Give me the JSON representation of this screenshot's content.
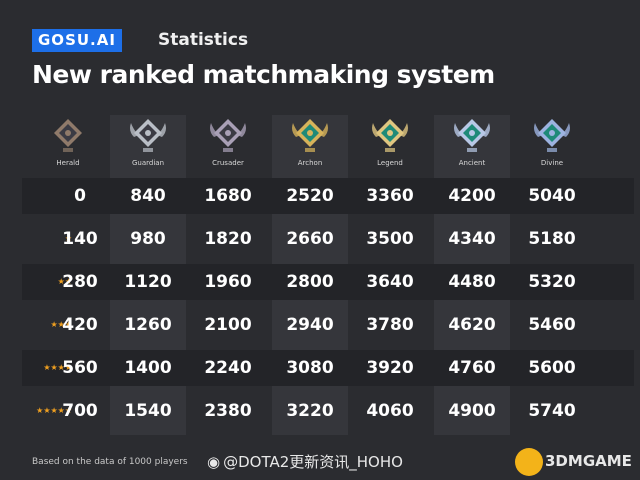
{
  "header": {
    "brand": "GOSU.AI",
    "section": "Statistics",
    "title": "New ranked matchmaking system"
  },
  "ranks": [
    {
      "name": "Herald",
      "icon": "herald-medal-icon",
      "color": "#8f7a6a"
    },
    {
      "name": "Guardian",
      "icon": "guardian-medal-icon",
      "color": "#b9bec6"
    },
    {
      "name": "Crusader",
      "icon": "crusader-medal-icon",
      "color": "#a9a0b6"
    },
    {
      "name": "Archon",
      "icon": "archon-medal-icon",
      "color": "#d7b35a"
    },
    {
      "name": "Legend",
      "icon": "legend-medal-icon",
      "color": "#e0c680"
    },
    {
      "name": "Ancient",
      "icon": "ancient-medal-icon",
      "color": "#b8c8e6"
    },
    {
      "name": "Divine",
      "icon": "divine-medal-icon",
      "color": "#9db3e0"
    }
  ],
  "rows": [
    {
      "stars": "",
      "values": [
        "0",
        "840",
        "1680",
        "2520",
        "3360",
        "4200",
        "5040"
      ]
    },
    {
      "stars": "★",
      "values": [
        "140",
        "980",
        "1820",
        "2660",
        "3500",
        "4340",
        "5180"
      ]
    },
    {
      "stars": "★★",
      "values": [
        "280",
        "1120",
        "1960",
        "2800",
        "3640",
        "4480",
        "5320"
      ]
    },
    {
      "stars": "★★★",
      "values": [
        "420",
        "1260",
        "2100",
        "2940",
        "3780",
        "4620",
        "5460"
      ]
    },
    {
      "stars": "★★★★",
      "values": [
        "560",
        "1400",
        "2240",
        "3080",
        "3920",
        "4760",
        "5600"
      ]
    },
    {
      "stars": "★★★★★",
      "values": [
        "700",
        "1540",
        "2380",
        "3220",
        "4060",
        "4900",
        "5740"
      ]
    }
  ],
  "footer": {
    "note": "Based on the data of 1000 players",
    "weibo": "@DOTA2更新资讯_HOHO",
    "watermark": "3DMGAME"
  },
  "colors": {
    "background": "#2b2c30",
    "brand": "#1d6fe8",
    "star": "#f0a020",
    "column_shade": "#35363b"
  }
}
